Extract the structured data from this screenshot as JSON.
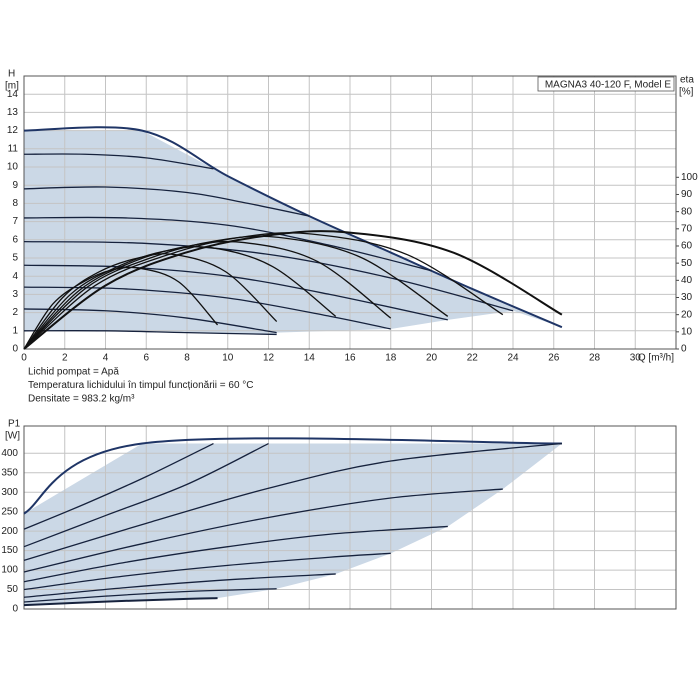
{
  "chart_data": [
    {
      "type": "line",
      "title": "MAGNA3 40-120 F, Model E",
      "y_label": "H",
      "y_unit": "[m]",
      "y2_label": "eta",
      "y2_unit": "[%]",
      "x_label": "Q [m³/h]",
      "xlim": [
        0,
        32
      ],
      "xticks": [
        0,
        2,
        4,
        6,
        8,
        10,
        12,
        14,
        16,
        18,
        20,
        22,
        24,
        26,
        28,
        30
      ],
      "ylim": [
        0,
        15
      ],
      "yticks": [
        0,
        1,
        2,
        3,
        4,
        5,
        6,
        7,
        8,
        9,
        10,
        11,
        12,
        13,
        14
      ],
      "y2lim": [
        0,
        159
      ],
      "y2ticks": [
        0,
        10,
        20,
        30,
        40,
        50,
        60,
        70,
        80,
        90,
        100
      ],
      "grid": true,
      "shade_color": "#cbd8e6",
      "annotations": [
        "Lichid pompat = Apă",
        "Temperatura lichidului în timpul funcționării = 60 °C",
        "Densitate = 983.2 kg/m³"
      ],
      "series": [
        {
          "color": "#1f3566",
          "x": [
            0,
            5.8,
            10,
            14,
            18,
            22,
            26.4
          ],
          "values": [
            12,
            12,
            9.5,
            7.3,
            5.3,
            3.3,
            1.2
          ]
        },
        {
          "color": "#16223d",
          "x": [
            0,
            3,
            6,
            9.3
          ],
          "values": [
            10.7,
            10.7,
            10.5,
            9.9
          ]
        },
        {
          "color": "#16223d",
          "x": [
            0,
            4,
            8,
            11,
            14
          ],
          "values": [
            8.8,
            8.9,
            8.6,
            8.0,
            7.3
          ]
        },
        {
          "color": "#16223d",
          "x": [
            0,
            5,
            10,
            15,
            20
          ],
          "values": [
            7.2,
            7.2,
            6.8,
            5.7,
            4.3
          ]
        },
        {
          "color": "#16223d",
          "x": [
            0,
            6,
            12,
            18,
            24
          ],
          "values": [
            5.9,
            5.8,
            5.2,
            3.9,
            2.1
          ]
        },
        {
          "color": "#16223d",
          "x": [
            0,
            5,
            10,
            15,
            20.8
          ],
          "values": [
            4.6,
            4.5,
            4.0,
            3.0,
            1.6
          ]
        },
        {
          "color": "#16223d",
          "x": [
            0,
            5,
            10,
            15,
            18
          ],
          "values": [
            3.4,
            3.3,
            2.8,
            1.8,
            1.1
          ]
        },
        {
          "color": "#16223d",
          "x": [
            0,
            4,
            8,
            12.4
          ],
          "values": [
            2.2,
            2.1,
            1.7,
            0.9
          ]
        },
        {
          "color": "#16223d",
          "x": [
            0,
            4,
            8,
            12.4
          ],
          "values": [
            1.0,
            1.0,
            0.9,
            0.8
          ]
        },
        {
          "color": "#111111",
          "axis": "y2",
          "x": [
            0,
            1.4,
            2.9,
            4.3,
            5.7,
            7.6,
            9.5
          ],
          "values": [
            0,
            26,
            39,
            46,
            47,
            39,
            14
          ]
        },
        {
          "color": "#111111",
          "axis": "y2",
          "x": [
            0,
            1.9,
            3.7,
            5.6,
            7.4,
            9.9,
            12.4
          ],
          "values": [
            0,
            30,
            45,
            53,
            55,
            45,
            16
          ]
        },
        {
          "color": "#111111",
          "axis": "y2",
          "x": [
            0,
            2.3,
            4.6,
            6.9,
            9.2,
            12.2,
            15.3
          ],
          "values": [
            0,
            32,
            48,
            57,
            59,
            48,
            19
          ]
        },
        {
          "color": "#111111",
          "axis": "y2",
          "x": [
            0,
            2.7,
            5.4,
            8.1,
            10.8,
            14.4,
            18
          ],
          "values": [
            0,
            34,
            51,
            60,
            62,
            51,
            18
          ]
        },
        {
          "color": "#111111",
          "axis": "y2",
          "x": [
            0,
            3.1,
            6.2,
            9.4,
            12.5,
            16.6,
            20.8
          ],
          "values": [
            0,
            36,
            53,
            63,
            65,
            53,
            19
          ]
        },
        {
          "color": "#111111",
          "axis": "y2",
          "x": [
            0,
            3.5,
            7.1,
            10.6,
            14.1,
            18.8,
            23.5
          ],
          "values": [
            0,
            37,
            55,
            65,
            67,
            55,
            20
          ]
        },
        {
          "color": "#111111",
          "axis": "y2",
          "x": [
            0,
            4,
            7.9,
            11.9,
            15.8,
            21.1,
            26.4
          ],
          "values": [
            0,
            37,
            56,
            66,
            68,
            56,
            20
          ]
        }
      ]
    },
    {
      "type": "line",
      "y_label": "P1",
      "y_unit": "[W]",
      "xlim": [
        0,
        32
      ],
      "xticks": [
        0,
        2,
        4,
        6,
        8,
        10,
        12,
        14,
        16,
        18,
        20,
        22,
        24,
        26,
        28,
        30
      ],
      "ylim": [
        0,
        470
      ],
      "yticks": [
        0,
        50,
        100,
        150,
        200,
        250,
        300,
        350,
        400
      ],
      "grid": true,
      "shade_color": "#cbd8e6",
      "series": [
        {
          "color": "#1f3566",
          "x": [
            0,
            5.8,
            26.4
          ],
          "values": [
            245,
            425,
            425
          ]
        },
        {
          "color": "#16223d",
          "x": [
            0,
            3,
            6,
            9.3
          ],
          "values": [
            205,
            270,
            340,
            425
          ]
        },
        {
          "color": "#16223d",
          "x": [
            0,
            4,
            8,
            12
          ],
          "values": [
            160,
            240,
            320,
            425
          ]
        },
        {
          "color": "#16223d",
          "x": [
            0,
            6,
            12,
            18,
            26.4
          ],
          "values": [
            125,
            220,
            310,
            380,
            425
          ]
        },
        {
          "color": "#16223d",
          "x": [
            0,
            6,
            12,
            18,
            23.5
          ],
          "values": [
            95,
            170,
            235,
            285,
            308
          ]
        },
        {
          "color": "#16223d",
          "x": [
            0,
            5,
            10,
            15,
            20.8
          ],
          "values": [
            70,
            120,
            160,
            192,
            212
          ]
        },
        {
          "color": "#16223d",
          "x": [
            0,
            5,
            10,
            15,
            18
          ],
          "values": [
            50,
            85,
            112,
            133,
            143
          ]
        },
        {
          "color": "#16223d",
          "x": [
            0,
            5,
            10,
            15.3
          ],
          "values": [
            30,
            55,
            75,
            90
          ]
        },
        {
          "color": "#16223d",
          "x": [
            0,
            4,
            8,
            12.4
          ],
          "values": [
            18,
            33,
            45,
            52
          ]
        },
        {
          "color": "#16223d",
          "x": [
            0,
            4,
            8,
            9.5
          ],
          "values": [
            10,
            19,
            26,
            28
          ]
        }
      ]
    }
  ]
}
